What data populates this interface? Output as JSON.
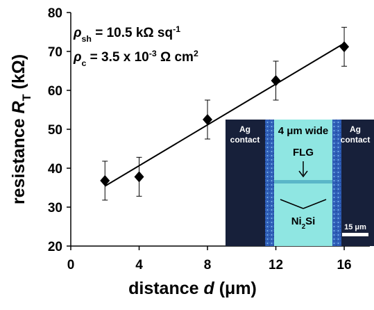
{
  "chart_data": {
    "type": "scatter",
    "x_label": [
      {
        "text": "distance "
      },
      {
        "text": "d",
        "style": "italic"
      },
      {
        "text": " (μm)"
      }
    ],
    "y_label": [
      {
        "text": "resistance "
      },
      {
        "text": "R",
        "style": "italic"
      },
      {
        "text": "T",
        "style": "sub"
      },
      {
        "text": " (kΩ)"
      }
    ],
    "annotations": [
      [
        {
          "text": "ρ",
          "style": "italic"
        },
        {
          "text": "sh",
          "style": "sub"
        },
        {
          "text": " = 10.5 kΩ sq"
        },
        {
          "text": "-1",
          "style": "sup"
        }
      ],
      [
        {
          "text": "ρ",
          "style": "italic"
        },
        {
          "text": "c",
          "style": "sub"
        },
        {
          "text": " = 3.5 x 10"
        },
        {
          "text": "-3",
          "style": "sup"
        },
        {
          "text": " Ω cm"
        },
        {
          "text": "2",
          "style": "sup"
        }
      ]
    ],
    "series": [
      {
        "color": "#000000",
        "x": [
          2,
          4,
          8,
          12,
          16
        ],
        "values": [
          36.8,
          37.8,
          52.5,
          62.5,
          71.2
        ],
        "errors": [
          5,
          5,
          5,
          5,
          5
        ]
      },
      {
        "color": "#000000",
        "style": "line",
        "x": [
          2,
          16
        ],
        "values": [
          35.4,
          72.1
        ]
      }
    ],
    "xlim": [
      0,
      17.5
    ],
    "xticks": [
      0,
      4,
      8,
      12,
      16
    ],
    "ylim": [
      20,
      80
    ],
    "yticks": [
      20,
      30,
      40,
      50,
      60,
      70,
      80
    ],
    "inset": {
      "left_contact": [
        "Ag",
        "contact"
      ],
      "right_contact": [
        "Ag",
        "contact"
      ],
      "width_label": "4 μm wide",
      "flg": "FLG",
      "ni2si": [
        {
          "text": "Ni"
        },
        {
          "text": "2",
          "style": "sub"
        },
        {
          "text": "Si"
        }
      ],
      "scale": "15 μm"
    }
  }
}
